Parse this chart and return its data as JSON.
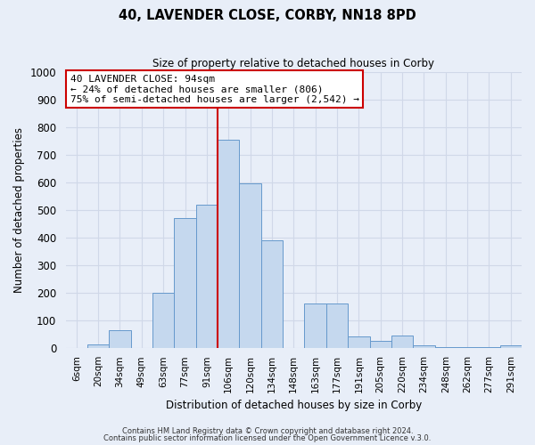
{
  "title": "40, LAVENDER CLOSE, CORBY, NN18 8PD",
  "subtitle": "Size of property relative to detached houses in Corby",
  "xlabel": "Distribution of detached houses by size in Corby",
  "ylabel": "Number of detached properties",
  "bar_labels": [
    "6sqm",
    "20sqm",
    "34sqm",
    "49sqm",
    "63sqm",
    "77sqm",
    "91sqm",
    "106sqm",
    "120sqm",
    "134sqm",
    "148sqm",
    "163sqm",
    "177sqm",
    "191sqm",
    "205sqm",
    "220sqm",
    "234sqm",
    "248sqm",
    "262sqm",
    "277sqm",
    "291sqm"
  ],
  "bar_values": [
    0,
    15,
    65,
    0,
    200,
    470,
    520,
    755,
    595,
    390,
    0,
    162,
    162,
    42,
    28,
    45,
    12,
    3,
    3,
    3,
    10
  ],
  "bar_color": "#c5d8ee",
  "bar_edge_color": "#6699cc",
  "vline_color": "#cc0000",
  "annotation_title": "40 LAVENDER CLOSE: 94sqm",
  "annotation_line1": "← 24% of detached houses are smaller (806)",
  "annotation_line2": "75% of semi-detached houses are larger (2,542) →",
  "annotation_box_edge": "#cc0000",
  "ylim": [
    0,
    1000
  ],
  "yticks": [
    0,
    100,
    200,
    300,
    400,
    500,
    600,
    700,
    800,
    900,
    1000
  ],
  "footer1": "Contains HM Land Registry data © Crown copyright and database right 2024.",
  "footer2": "Contains public sector information licensed under the Open Government Licence v.3.0.",
  "bg_color": "#e8eef8",
  "grid_color": "#d0d8e8",
  "vline_bar_index": 6
}
